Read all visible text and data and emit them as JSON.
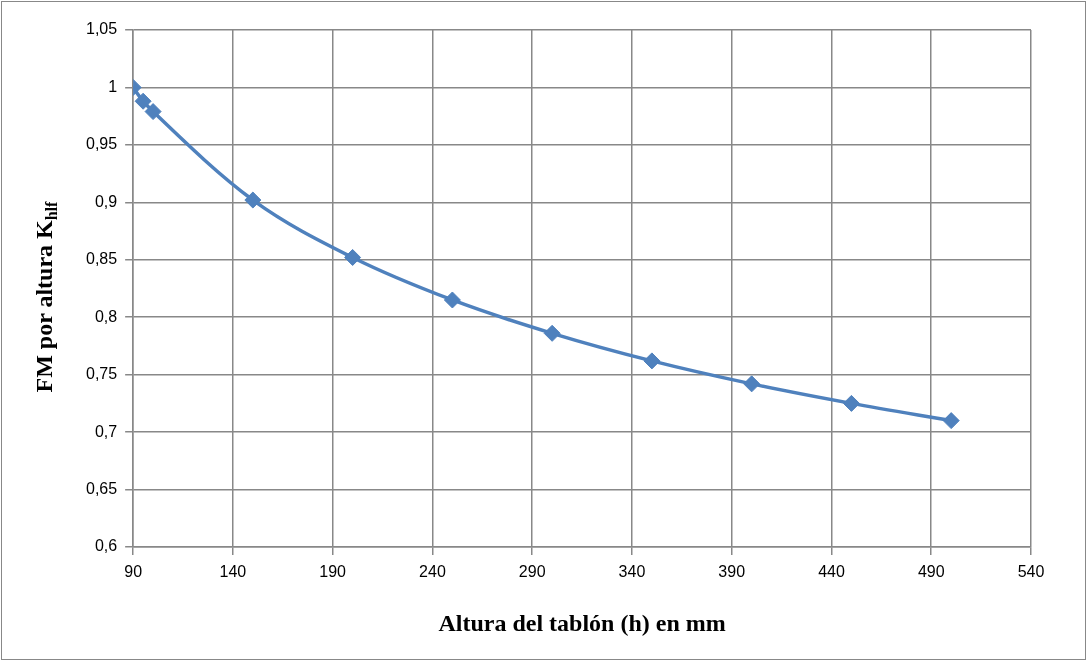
{
  "chart_data": {
    "type": "line",
    "xlabel": "Altura del tablón (h) en mm",
    "ylabel": "FM por altura K$_{hlf}$",
    "x": [
      90,
      95,
      100,
      150,
      200,
      250,
      300,
      350,
      400,
      450,
      500
    ],
    "series": [
      {
        "color": "#4f81bd",
        "values": [
          1,
          0.988,
          0.979,
          0.902,
          0.852,
          0.815,
          0.786,
          0.762,
          0.742,
          0.725,
          0.71
        ]
      }
    ],
    "xlim": [
      90,
      540
    ],
    "xticks": [
      90,
      140,
      190,
      240,
      290,
      340,
      390,
      440,
      490,
      540
    ],
    "ylim": [
      0.6,
      1.05
    ],
    "yticks": [
      {
        "value": 0.6,
        "label": "0,6"
      },
      {
        "value": 0.65,
        "label": "0,65"
      },
      {
        "value": 0.7,
        "label": "0,7"
      },
      {
        "value": 0.75,
        "label": "0,75"
      },
      {
        "value": 0.8,
        "label": "0,8"
      },
      {
        "value": 0.85,
        "label": "0,85"
      },
      {
        "value": 0.9,
        "label": "0,9"
      },
      {
        "value": 0.95,
        "label": "0,95"
      },
      {
        "value": 1,
        "label": "1"
      },
      {
        "value": 1.05,
        "label": "1,05"
      }
    ],
    "grid": true,
    "legend": false,
    "marker": "diamond",
    "line_style": "solid"
  }
}
